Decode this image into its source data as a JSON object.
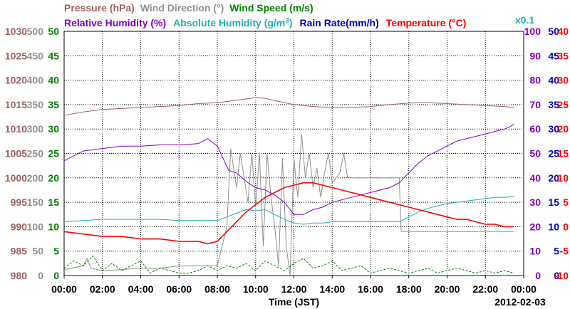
{
  "chart_data": {
    "type": "line",
    "date": "2012-02-03",
    "xlabel": "Time (JST)",
    "x_ticks": [
      "00:00",
      "02:00",
      "04:00",
      "06:00",
      "08:00",
      "10:00",
      "12:00",
      "14:00",
      "16:00",
      "18:00",
      "20:00",
      "22:00",
      "00:00"
    ],
    "xlim_hours": [
      0,
      24
    ],
    "grid": true,
    "legend": {
      "row1": [
        {
          "label": "Pressure (hPa)",
          "color": "#a06060"
        },
        {
          "label": "Wind Direction (°)",
          "color": "#909090"
        },
        {
          "label": "Wind Speed (m/s)",
          "color": "#008000"
        }
      ],
      "row2": [
        {
          "label": "Relative Humidity (%)",
          "color": "#8000c0"
        },
        {
          "label": "Absolute Humidity (g/m",
          "sup": "3",
          "close": ")",
          "color": "#20b0b0"
        },
        {
          "label": "Rain Rate(mm/h)",
          "color": "#0000c0"
        },
        {
          "label": "Temperature (°C)",
          "color": "#ff0000"
        }
      ],
      "abs_humidity_scale": "x0.1"
    },
    "axes": {
      "pressure": {
        "color": "#a06060",
        "min": 980,
        "max": 1030,
        "ticks": [
          "1030",
          "1025",
          "1020",
          "1015",
          "1010",
          "1005",
          "1000",
          "995",
          "990",
          "985",
          "980"
        ]
      },
      "wind_direction": {
        "color": "#909090",
        "min": 0,
        "max": 500,
        "ticks": [
          "500",
          "450",
          "400",
          "350",
          "300",
          "250",
          "200",
          "150",
          "100",
          "50",
          "0"
        ]
      },
      "wind_speed": {
        "color": "#008000",
        "min": 0,
        "max": 50,
        "ticks": [
          "50",
          "45",
          "40",
          "35",
          "30",
          "25",
          "20",
          "15",
          "10",
          "5",
          "0"
        ]
      },
      "relative_humidity": {
        "color": "#8000c0",
        "min": 0,
        "max": 100,
        "ticks": [
          "100",
          "90",
          "80",
          "70",
          "60",
          "50",
          "40",
          "30",
          "20",
          "10",
          "0"
        ]
      },
      "rain_rate": {
        "color": "#0000c0",
        "min": 0,
        "max": 50,
        "ticks": [
          "50",
          "45",
          "40",
          "35",
          "30",
          "25",
          "20",
          "15",
          "10",
          "5",
          "0"
        ]
      },
      "temperature": {
        "color": "#ff0000",
        "min": -10,
        "max": 40,
        "ticks": [
          "40",
          "35",
          "30",
          "25",
          "20",
          "15",
          "10",
          "5",
          "0",
          "-5",
          "-10"
        ]
      }
    },
    "series": [
      {
        "name": "Pressure (hPa)",
        "axis": "pressure",
        "color": "#a06060",
        "x": [
          0,
          1,
          2,
          3,
          4,
          5,
          6,
          7,
          8,
          9,
          10,
          10.5,
          11,
          12,
          13,
          14,
          15,
          16,
          17,
          18,
          19,
          20,
          21,
          22,
          23,
          23.5
        ],
        "y": [
          1012.8,
          1013.5,
          1014,
          1014.2,
          1014.4,
          1014.6,
          1014.8,
          1015.2,
          1015.4,
          1015.9,
          1016.4,
          1016.3,
          1015.8,
          1015,
          1014.6,
          1014.4,
          1014.4,
          1014.6,
          1015,
          1015.3,
          1015.4,
          1015.2,
          1015,
          1014.8,
          1014.6,
          1014.4
        ]
      },
      {
        "name": "Wind Direction (°)",
        "axis": "wind_direction",
        "color": "#909090",
        "x": [
          0,
          1,
          1.2,
          1.4,
          2,
          3,
          3.5,
          4,
          5,
          6,
          7,
          8,
          8.5,
          8.7,
          9,
          9.2,
          9.4,
          9.6,
          9.8,
          10,
          10.2,
          10.4,
          10.6,
          10.8,
          11,
          11.2,
          11.4,
          11.6,
          11.8,
          12,
          12.2,
          12.4,
          12.6,
          12.8,
          13,
          13.2,
          13.4,
          13.6,
          13.8,
          14,
          14.2,
          14.4,
          14.6,
          14.8,
          15,
          15.5,
          16,
          16.5,
          17,
          17.5,
          17.6,
          18,
          19,
          20,
          21,
          22,
          23,
          23.5
        ],
        "y": [
          12,
          20,
          35,
          15,
          10,
          12,
          14,
          15,
          15,
          20,
          20,
          20,
          100,
          260,
          180,
          250,
          200,
          150,
          250,
          140,
          250,
          60,
          250,
          160,
          100,
          20,
          240,
          60,
          0,
          240,
          160,
          290,
          200,
          250,
          180,
          220,
          160,
          210,
          250,
          190,
          200,
          210,
          250,
          200,
          200,
          200,
          200,
          200,
          200,
          200,
          90,
          90,
          90,
          90,
          90,
          90,
          90,
          90
        ]
      },
      {
        "name": "Wind Speed (m/s)",
        "axis": "wind_speed",
        "color": "#008000",
        "x": [
          0,
          0.5,
          1,
          1.5,
          2,
          2.5,
          3,
          3.5,
          4,
          4.5,
          5,
          5.5,
          6,
          6.5,
          7,
          7.5,
          8,
          8.5,
          9,
          9.5,
          10,
          10.5,
          11,
          11.5,
          12,
          12.5,
          13,
          13.5,
          14,
          14.5,
          15,
          15.5,
          16,
          16.5,
          17,
          17.5,
          18,
          18.5,
          19,
          19.5,
          20,
          20.5,
          21,
          21.5,
          22,
          22.5,
          23,
          23.5
        ],
        "y": [
          1.5,
          3,
          2,
          4,
          1,
          2.5,
          1,
          2,
          3,
          0.5,
          1.5,
          1,
          0.5,
          0.5,
          1,
          2,
          1,
          2,
          1.5,
          2.5,
          1,
          3,
          2,
          1,
          2.5,
          3.5,
          1.5,
          2,
          3,
          1,
          1.5,
          2,
          0.5,
          1,
          1.5,
          1,
          0.5,
          1,
          1.5,
          0.5,
          1,
          1.5,
          1,
          0.5,
          1,
          0.5,
          1,
          0.5
        ]
      },
      {
        "name": "Relative Humidity (%)",
        "axis": "relative_humidity",
        "color": "#8000c0",
        "x": [
          0,
          1,
          2,
          3,
          4,
          5,
          6,
          7,
          7.5,
          8,
          8.3,
          8.6,
          9,
          9.3,
          9.6,
          10,
          10.5,
          11,
          11.5,
          12,
          12.5,
          13,
          13.5,
          14,
          14.5,
          15,
          15.5,
          16,
          16.5,
          17,
          17.5,
          18,
          18.5,
          19,
          19.5,
          20,
          20.5,
          21,
          21.5,
          22,
          22.5,
          23,
          23.3,
          23.5
        ],
        "y": [
          47,
          51,
          52,
          53,
          53,
          53.5,
          53.5,
          54,
          56,
          53,
          48,
          43,
          42,
          40,
          38,
          36,
          35,
          33,
          30,
          25,
          25,
          27,
          28,
          30,
          31,
          32,
          33,
          34,
          35,
          36,
          38,
          42,
          46,
          49,
          51,
          53,
          55,
          56,
          57,
          58,
          59,
          60,
          61,
          62
        ]
      },
      {
        "name": "Absolute Humidity (g/m3) x0.1",
        "axis": "relative_humidity",
        "color": "#20b0b0",
        "x": [
          0,
          1,
          2,
          3,
          4,
          5,
          6,
          7,
          7.5,
          8,
          8.5,
          9,
          9.5,
          10,
          10.5,
          11,
          11.5,
          12,
          12.5,
          13,
          13.5,
          14,
          14.5,
          15,
          15.5,
          16,
          16.5,
          17,
          17.5,
          18,
          18.5,
          19,
          19.5,
          20,
          20.5,
          21,
          21.5,
          22,
          22.5,
          23,
          23.5
        ],
        "y": [
          22,
          22.5,
          23,
          23,
          23,
          23,
          22.5,
          22.5,
          22.5,
          22.5,
          24,
          25.5,
          27,
          26.5,
          27,
          25,
          23,
          21.5,
          21,
          21.5,
          21.5,
          22,
          22,
          22,
          22,
          22,
          22,
          22,
          22,
          24,
          26,
          27.5,
          28.5,
          29.5,
          30,
          30.5,
          31,
          31.5,
          32,
          32,
          32.5
        ]
      },
      {
        "name": "Temperature (°C)",
        "axis": "temperature",
        "color": "#ff0000",
        "x": [
          0,
          1,
          2,
          3,
          4,
          5,
          6,
          7,
          7.5,
          8,
          8.5,
          9,
          9.5,
          10,
          10.5,
          11,
          11.5,
          12,
          12.5,
          13,
          13.5,
          14,
          14.5,
          15,
          15.5,
          16,
          16.5,
          17,
          17.5,
          18,
          18.5,
          19,
          19.5,
          20,
          20.5,
          21,
          21.5,
          22,
          22.5,
          23,
          23.5
        ],
        "y": [
          -1,
          -1.5,
          -2,
          -2,
          -2.5,
          -2.5,
          -3,
          -3,
          -3.5,
          -3,
          -1,
          1,
          3,
          4.5,
          6,
          7,
          8,
          8.5,
          9,
          9,
          8.5,
          8,
          7.5,
          7,
          6.5,
          6,
          5.5,
          5,
          4.5,
          4,
          3.5,
          3,
          2.5,
          2,
          1.5,
          1.5,
          1,
          0.5,
          0.5,
          0,
          0
        ]
      },
      {
        "name": "Rain Rate(mm/h)",
        "axis": "rain_rate",
        "color": "#0000c0",
        "x": [
          0,
          24
        ],
        "y": [
          0,
          0
        ]
      }
    ]
  }
}
